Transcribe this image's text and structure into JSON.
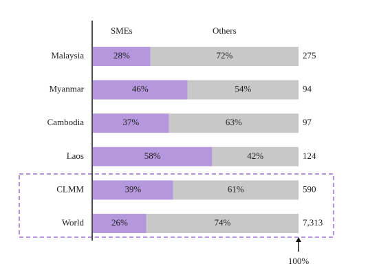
{
  "chart_data": {
    "type": "stacked-bar",
    "orientation": "horizontal",
    "categories": [
      "Malaysia",
      "Myanmar",
      "Cambodia",
      "Laos",
      "CLMM",
      "World"
    ],
    "series": [
      {
        "name": "SMEs",
        "color": "#b597dd",
        "values": [
          28,
          46,
          37,
          58,
          39,
          26
        ],
        "value_labels": [
          "28%",
          "46%",
          "37%",
          "58%",
          "39%",
          "26%"
        ]
      },
      {
        "name": "Others",
        "color": "#c8c8c8",
        "values": [
          72,
          54,
          63,
          42,
          61,
          74
        ],
        "value_labels": [
          "72%",
          "54%",
          "63%",
          "42%",
          "61%",
          "74%"
        ]
      }
    ],
    "totals": {
      "values": [
        275,
        94,
        97,
        124,
        590,
        7313
      ],
      "value_labels": [
        "275",
        "94",
        "97",
        "124",
        "590",
        "7,313"
      ]
    },
    "xlim": [
      0,
      100
    ],
    "annotation": {
      "text": "100%",
      "x": 100
    }
  }
}
